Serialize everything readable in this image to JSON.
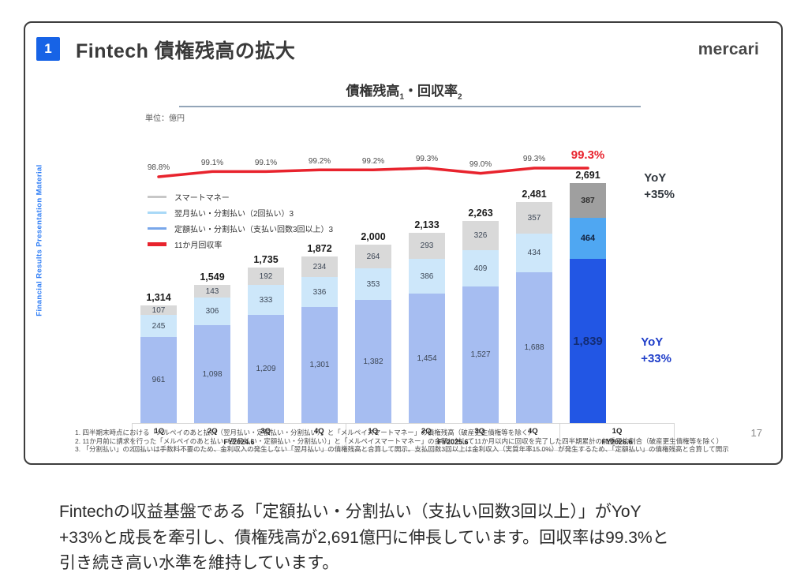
{
  "slide": {
    "badge": "1",
    "title": "Fintech 債権残高の拡大",
    "logo": "mercari",
    "page_number": "17",
    "side_label": "Financial Results Presentation Material"
  },
  "chart": {
    "title_part1": "債権残高",
    "title_fn1": "1",
    "title_sep": "・",
    "title_part2": "回収率",
    "title_fn2": "2",
    "unit_label": "単位：億円"
  },
  "chart_data": {
    "type": "stacked-bar-line",
    "categories": [
      "1Q",
      "2Q",
      "3Q",
      "4Q",
      "1Q",
      "2Q",
      "3Q",
      "4Q",
      "1Q"
    ],
    "groups": [
      {
        "label": "FY2024.6",
        "span": 4
      },
      {
        "label": "FY2025.6",
        "span": 4
      },
      {
        "label": "FY2026.6",
        "span": 1
      }
    ],
    "series": [
      {
        "name": "定額払い・分割払い（支払い回数3回以上）3",
        "values": [
          961,
          1098,
          1209,
          1301,
          1382,
          1454,
          1527,
          1688,
          1839
        ],
        "color": "#a6bdf1",
        "final_color": "#2256e4"
      },
      {
        "name": "翌月払い・分割払い（2回払い）3",
        "values": [
          245,
          306,
          333,
          336,
          353,
          386,
          409,
          434,
          464
        ],
        "color": "#cde7fa",
        "final_color": "#4fa7f2"
      },
      {
        "name": "スマートマネー",
        "values": [
          107,
          143,
          192,
          234,
          264,
          293,
          326,
          357,
          387
        ],
        "color": "#d9d9d9",
        "final_color": "#9f9f9f"
      }
    ],
    "totals": [
      "1,314",
      "1,549",
      "1,735",
      "1,872",
      "2,000",
      "2,133",
      "2,263",
      "2,481",
      "2,691"
    ],
    "line": {
      "name": "11か月回収率",
      "values": [
        98.8,
        99.1,
        99.1,
        99.2,
        99.2,
        99.3,
        99.0,
        99.3,
        99.3
      ],
      "labels": [
        "98.8%",
        "99.1%",
        "99.1%",
        "99.2%",
        "99.2%",
        "99.3%",
        "99.0%",
        "99.3%",
        "99.3%"
      ],
      "color": "#e8232d"
    },
    "annotations": {
      "total_yoy_label": "YoY",
      "total_yoy_value": "+35%",
      "blue_yoy_label": "YoY",
      "blue_yoy_value": "+33%"
    },
    "ylim": [
      0,
      2691
    ],
    "unit": "億円"
  },
  "legend": {
    "items": [
      {
        "label": "スマートマネー",
        "color": "#c7c7c7",
        "thick": false
      },
      {
        "label": "翌月払い・分割払い（2回払い）3",
        "color": "#a9d9f7",
        "thick": false
      },
      {
        "label": "定額払い・分割払い（支払い回数3回以上）3",
        "color": "#79a7ea",
        "thick": false
      },
      {
        "label": "11か月回収率",
        "color": "#e8232d",
        "thick": true
      }
    ]
  },
  "footnotes": [
    "1. 四半期末時点における「メルペイのあと払い（翌月払い・定額払い・分割払い）」と「メルペイスマートマネー」の債権残高（破産更生債権等を除く）",
    "2. 11か月前に請求を行った「メルペイのあと払い（翌月払い・定額払い・分割払い）」と「メルペイスマートマネー」の金額に対して11か月以内に回収を完了した四半期累計の加重平均割合（破産更生債権等を除く）",
    "3. 「分割払い」の2回払いは手数料不要のため、金利収入の発生しない「翌月払い」の債権残高と合算して開示。支払回数3回以上は金利収入（実質年率15.0%）が発生するため、「定額払い」の債権残高と合算して開示"
  ],
  "summary": {
    "lines": [
      "Fintechの収益基盤である「定額払い・分割払い（支払い回数3回以上）」がYoY",
      "+33%と成長を牽引し、債権残高が2,691億円に伸長しています。回収率は99.3%と",
      "引き続き高い水準を維持しています。"
    ]
  }
}
